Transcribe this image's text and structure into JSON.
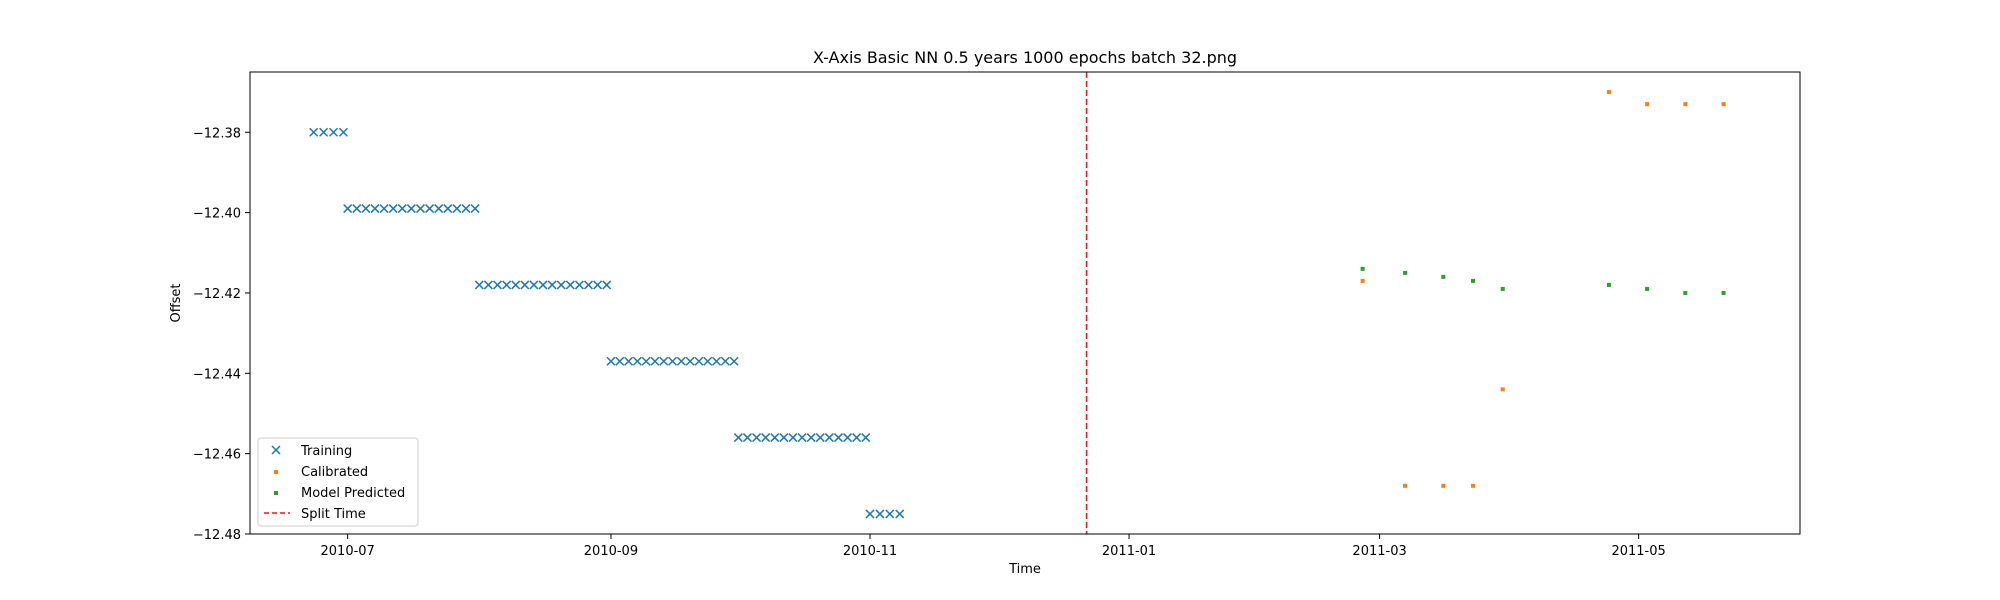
{
  "chart_data": {
    "type": "scatter",
    "title": "X-Axis Basic NN 0.5 years 1000 epochs batch 32.png",
    "xlabel": "Time",
    "ylabel": "Offset",
    "xlim": [
      "2010-06-08",
      "2011-06-08"
    ],
    "ylim": [
      -12.48,
      -12.365
    ],
    "x_ticks": [
      "2010-07-01",
      "2010-09-01",
      "2010-11-01",
      "2011-01-01",
      "2011-03-01",
      "2011-05-01"
    ],
    "x_tick_labels": [
      "2010-07",
      "2010-09",
      "2010-11",
      "2011-01",
      "2011-03",
      "2011-05"
    ],
    "y_ticks": [
      -12.48,
      -12.46,
      -12.44,
      -12.42,
      -12.4,
      -12.38
    ],
    "y_tick_labels": [
      "−12.48",
      "−12.46",
      "−12.44",
      "−12.42",
      "−12.40",
      "−12.38"
    ],
    "grid": false,
    "legend_position": "lower-left",
    "colors": {
      "training": "#1f77b4",
      "calibrated": "#ff7f0e",
      "predicted": "#2ca02c",
      "split": "#e41a1c"
    },
    "training_groups": [
      {
        "start": "2010-06-23",
        "end": "2010-06-30",
        "count": 4,
        "y": -12.38
      },
      {
        "start": "2010-07-01",
        "end": "2010-07-31",
        "count": 15,
        "y": -12.399
      },
      {
        "start": "2010-08-01",
        "end": "2010-08-31",
        "count": 15,
        "y": -12.418
      },
      {
        "start": "2010-09-01",
        "end": "2010-09-30",
        "count": 15,
        "y": -12.437
      },
      {
        "start": "2010-10-01",
        "end": "2010-10-31",
        "count": 15,
        "y": -12.456
      },
      {
        "start": "2010-11-01",
        "end": "2010-11-08",
        "count": 4,
        "y": -12.475
      }
    ],
    "series": [
      {
        "name": "Calibrated",
        "points": [
          {
            "x": "2011-02-25",
            "y": -12.417
          },
          {
            "x": "2011-03-07",
            "y": -12.468
          },
          {
            "x": "2011-03-16",
            "y": -12.468
          },
          {
            "x": "2011-03-23",
            "y": -12.468
          },
          {
            "x": "2011-03-30",
            "y": -12.444
          },
          {
            "x": "2011-04-24",
            "y": -12.37
          },
          {
            "x": "2011-05-03",
            "y": -12.373
          },
          {
            "x": "2011-05-12",
            "y": -12.373
          },
          {
            "x": "2011-05-21",
            "y": -12.373
          }
        ]
      },
      {
        "name": "Model Predicted",
        "points": [
          {
            "x": "2011-02-25",
            "y": -12.414
          },
          {
            "x": "2011-03-07",
            "y": -12.415
          },
          {
            "x": "2011-03-16",
            "y": -12.416
          },
          {
            "x": "2011-03-23",
            "y": -12.417
          },
          {
            "x": "2011-03-30",
            "y": -12.419
          },
          {
            "x": "2011-04-24",
            "y": -12.418
          },
          {
            "x": "2011-05-03",
            "y": -12.419
          },
          {
            "x": "2011-05-12",
            "y": -12.42
          },
          {
            "x": "2011-05-21",
            "y": -12.42
          }
        ]
      }
    ],
    "split_time": "2010-12-22",
    "legend": [
      "Training",
      "Calibrated",
      "Model Predicted",
      "Split Time"
    ]
  }
}
